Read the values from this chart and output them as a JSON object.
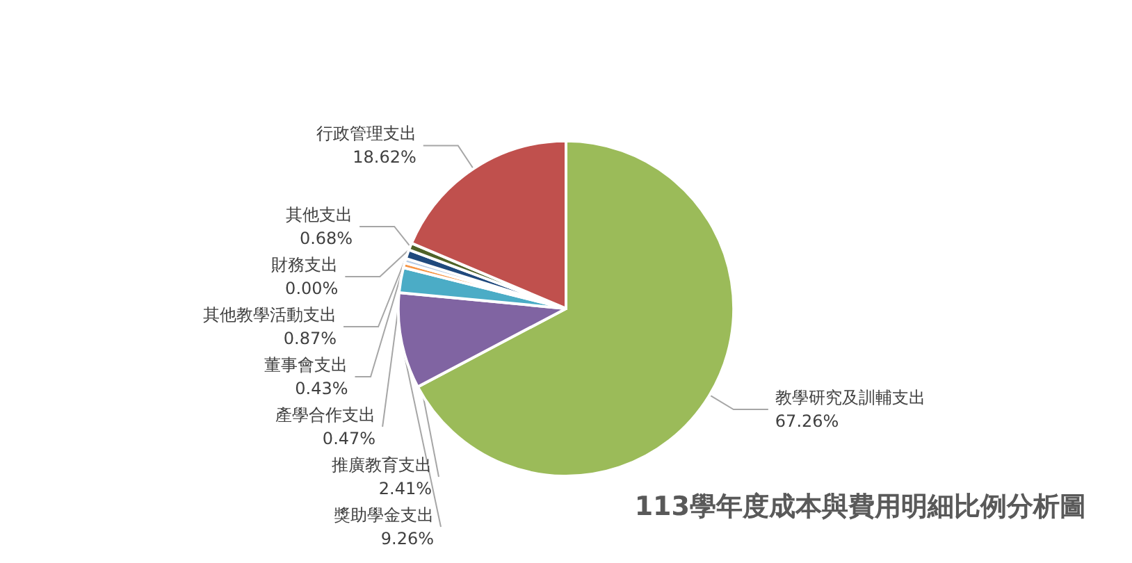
{
  "chart_data": {
    "type": "pie",
    "title": "113學年度成本與費用明細比例分析圖",
    "categories": [
      "教學研究及訓輔支出",
      "獎助學金支出",
      "推廣教育支出",
      "產學合作支出",
      "董事會支出",
      "其他教學活動支出",
      "財務支出",
      "其他支出",
      "行政管理支出"
    ],
    "values": [
      67.26,
      9.26,
      2.41,
      0.47,
      0.43,
      0.87,
      0.0,
      0.68,
      18.62
    ],
    "colors": [
      "#9bbb59",
      "#8064a2",
      "#4bacc6",
      "#f79646",
      "#b9cde5",
      "#1f497d",
      "#7f7f7f",
      "#4f6228",
      "#c0504d"
    ],
    "value_labels": [
      "67.26%",
      "9.26%",
      "2.41%",
      "0.47%",
      "0.43%",
      "0.87%",
      "0.00%",
      "0.68%",
      "18.62%"
    ]
  }
}
